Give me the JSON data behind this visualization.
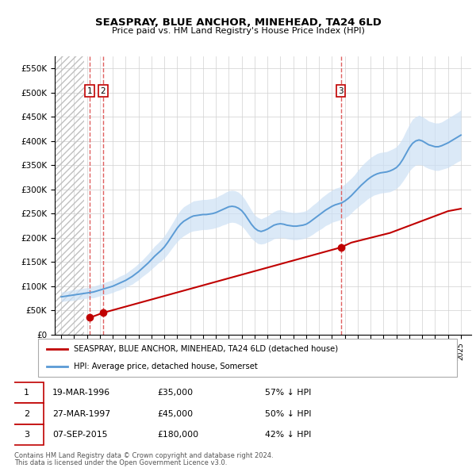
{
  "title": "SEASPRAY, BLUE ANCHOR, MINEHEAD, TA24 6LD",
  "subtitle": "Price paid vs. HM Land Registry's House Price Index (HPI)",
  "ylim": [
    0,
    575000
  ],
  "yticks": [
    0,
    50000,
    100000,
    150000,
    200000,
    250000,
    300000,
    350000,
    400000,
    450000,
    500000,
    550000
  ],
  "ytick_labels": [
    "£0",
    "£50K",
    "£100K",
    "£150K",
    "£200K",
    "£250K",
    "£300K",
    "£350K",
    "£400K",
    "£450K",
    "£500K",
    "£550K"
  ],
  "xlim_start": 1993.5,
  "xlim_end": 2025.8,
  "hpi_fill_color": "#cce0f5",
  "hpi_line_color": "#5b9bd5",
  "property_color": "#c00000",
  "vline_color": "#e06060",
  "transaction_dates": [
    1996.22,
    1997.24,
    2015.68
  ],
  "transaction_prices": [
    35000,
    45000,
    180000
  ],
  "transaction_labels": [
    "1",
    "2",
    "3"
  ],
  "legend_property": "SEASPRAY, BLUE ANCHOR, MINEHEAD, TA24 6LD (detached house)",
  "legend_hpi": "HPI: Average price, detached house, Somerset",
  "table_rows": [
    [
      "1",
      "19-MAR-1996",
      "£35,000",
      "57% ↓ HPI"
    ],
    [
      "2",
      "27-MAR-1997",
      "£45,000",
      "50% ↓ HPI"
    ],
    [
      "3",
      "07-SEP-2015",
      "£180,000",
      "42% ↓ HPI"
    ]
  ],
  "footnote1": "Contains HM Land Registry data © Crown copyright and database right 2024.",
  "footnote2": "This data is licensed under the Open Government Licence v3.0.",
  "hpi_years": [
    1994.0,
    1994.25,
    1994.5,
    1994.75,
    1995.0,
    1995.25,
    1995.5,
    1995.75,
    1996.0,
    1996.25,
    1996.5,
    1996.75,
    1997.0,
    1997.25,
    1997.5,
    1997.75,
    1998.0,
    1998.25,
    1998.5,
    1998.75,
    1999.0,
    1999.25,
    1999.5,
    1999.75,
    2000.0,
    2000.25,
    2000.5,
    2000.75,
    2001.0,
    2001.25,
    2001.5,
    2001.75,
    2002.0,
    2002.25,
    2002.5,
    2002.75,
    2003.0,
    2003.25,
    2003.5,
    2003.75,
    2004.0,
    2004.25,
    2004.5,
    2004.75,
    2005.0,
    2005.25,
    2005.5,
    2005.75,
    2006.0,
    2006.25,
    2006.5,
    2006.75,
    2007.0,
    2007.25,
    2007.5,
    2007.75,
    2008.0,
    2008.25,
    2008.5,
    2008.75,
    2009.0,
    2009.25,
    2009.5,
    2009.75,
    2010.0,
    2010.25,
    2010.5,
    2010.75,
    2011.0,
    2011.25,
    2011.5,
    2011.75,
    2012.0,
    2012.25,
    2012.5,
    2012.75,
    2013.0,
    2013.25,
    2013.5,
    2013.75,
    2014.0,
    2014.25,
    2014.5,
    2014.75,
    2015.0,
    2015.25,
    2015.5,
    2015.75,
    2016.0,
    2016.25,
    2016.5,
    2016.75,
    2017.0,
    2017.25,
    2017.5,
    2017.75,
    2018.0,
    2018.25,
    2018.5,
    2018.75,
    2019.0,
    2019.25,
    2019.5,
    2019.75,
    2020.0,
    2020.25,
    2020.5,
    2020.75,
    2021.0,
    2021.25,
    2021.5,
    2021.75,
    2022.0,
    2022.25,
    2022.5,
    2022.75,
    2023.0,
    2023.25,
    2023.5,
    2023.75,
    2024.0,
    2024.25,
    2024.5,
    2024.75,
    2025.0
  ],
  "hpi_values": [
    78000,
    79000,
    80000,
    81000,
    82000,
    83000,
    84000,
    85000,
    86000,
    87000,
    88000,
    90000,
    92000,
    94000,
    96000,
    98000,
    100000,
    103000,
    106000,
    109000,
    112000,
    116000,
    120000,
    125000,
    130000,
    136000,
    142000,
    148000,
    155000,
    162000,
    168000,
    174000,
    181000,
    190000,
    200000,
    210000,
    220000,
    228000,
    234000,
    238000,
    242000,
    245000,
    246000,
    247000,
    248000,
    248000,
    249000,
    250000,
    252000,
    255000,
    258000,
    261000,
    264000,
    265000,
    264000,
    261000,
    256000,
    248000,
    238000,
    228000,
    220000,
    215000,
    213000,
    215000,
    218000,
    222000,
    226000,
    228000,
    229000,
    228000,
    226000,
    225000,
    224000,
    224000,
    225000,
    226000,
    228000,
    232000,
    237000,
    242000,
    247000,
    252000,
    257000,
    261000,
    265000,
    268000,
    270000,
    272000,
    276000,
    281000,
    287000,
    294000,
    301000,
    308000,
    314000,
    320000,
    325000,
    329000,
    332000,
    334000,
    335000,
    336000,
    338000,
    341000,
    345000,
    352000,
    362000,
    374000,
    386000,
    395000,
    400000,
    402000,
    400000,
    396000,
    392000,
    390000,
    388000,
    388000,
    390000,
    393000,
    396000,
    400000,
    404000,
    408000,
    412000
  ],
  "hpi_upper": [
    88000,
    89000,
    90000,
    92000,
    93000,
    94000,
    95000,
    96000,
    97000,
    98000,
    100000,
    102000,
    104000,
    106000,
    109000,
    111000,
    113000,
    116000,
    120000,
    123000,
    126000,
    131000,
    136000,
    141000,
    147000,
    153000,
    160000,
    167000,
    175000,
    183000,
    189000,
    196000,
    204000,
    214000,
    225000,
    236000,
    248000,
    257000,
    264000,
    268000,
    272000,
    276000,
    277000,
    278000,
    279000,
    279000,
    280000,
    281000,
    283000,
    287000,
    290000,
    294000,
    297000,
    298000,
    297000,
    294000,
    288000,
    279000,
    268000,
    257000,
    247000,
    242000,
    239000,
    242000,
    245000,
    250000,
    254000,
    257000,
    258000,
    256000,
    254000,
    253000,
    252000,
    252000,
    253000,
    254000,
    256000,
    261000,
    267000,
    272000,
    278000,
    284000,
    289000,
    294000,
    298000,
    302000,
    304000,
    306000,
    311000,
    317000,
    323000,
    330000,
    339000,
    347000,
    354000,
    360000,
    366000,
    370000,
    374000,
    376000,
    377000,
    378000,
    381000,
    384000,
    388000,
    396000,
    407000,
    421000,
    434000,
    445000,
    450000,
    453000,
    450000,
    446000,
    441000,
    439000,
    437000,
    437000,
    439000,
    443000,
    447000,
    451000,
    455000,
    459000,
    464000
  ],
  "hpi_lower": [
    68000,
    69000,
    70000,
    70000,
    71000,
    72000,
    73000,
    74000,
    75000,
    76000,
    76000,
    78000,
    80000,
    82000,
    83000,
    85000,
    87000,
    90000,
    92000,
    95000,
    98000,
    101000,
    104000,
    109000,
    113000,
    119000,
    124000,
    129000,
    135000,
    141000,
    147000,
    152000,
    158000,
    166000,
    175000,
    184000,
    192000,
    199000,
    204000,
    208000,
    212000,
    214000,
    215000,
    216000,
    217000,
    217000,
    218000,
    219000,
    221000,
    223000,
    226000,
    228000,
    231000,
    232000,
    231000,
    228000,
    224000,
    217000,
    208000,
    199000,
    193000,
    188000,
    187000,
    188000,
    191000,
    194000,
    198000,
    199000,
    200000,
    200000,
    198000,
    197000,
    196000,
    196000,
    197000,
    198000,
    200000,
    203000,
    207000,
    212000,
    216000,
    220000,
    225000,
    228000,
    232000,
    234000,
    236000,
    238000,
    241000,
    245000,
    251000,
    258000,
    263000,
    269000,
    274000,
    280000,
    284000,
    288000,
    290000,
    292000,
    293000,
    294000,
    295000,
    298000,
    302000,
    308000,
    317000,
    327000,
    338000,
    345000,
    350000,
    351000,
    350000,
    346000,
    343000,
    341000,
    339000,
    339000,
    341000,
    343000,
    345000,
    349000,
    353000,
    357000,
    360000
  ],
  "prop_years": [
    1996.22,
    1997.24,
    2015.68,
    2016.5,
    2018.0,
    2019.5,
    2021.0,
    2022.5,
    2024.0,
    2025.0
  ],
  "prop_values": [
    35000,
    45000,
    180000,
    190000,
    200000,
    210000,
    225000,
    240000,
    255000,
    260000
  ],
  "hatch_end": 1995.8,
  "background_color": "#ffffff",
  "grid_color": "#d0d0d0"
}
